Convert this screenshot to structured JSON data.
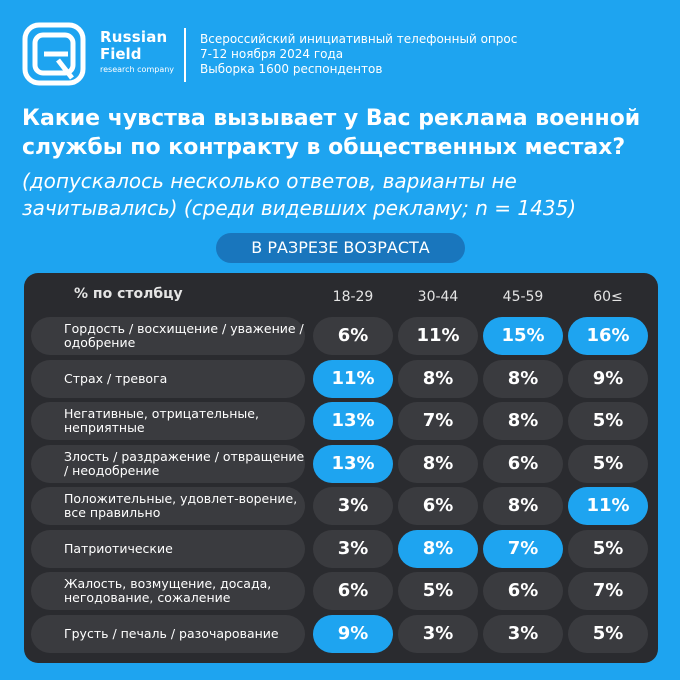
{
  "brand": {
    "line1": "Russian",
    "line2": "Field",
    "tagline": "research company",
    "logo_icon": "rf-logo-icon"
  },
  "survey": {
    "line1": "Всероссийский инициативный телефонный опрос",
    "line2": "7-12 ноября 2024 года",
    "line3": "Выборка 1600 респондентов"
  },
  "question": {
    "line1": "Какие чувства вызывает у Вас реклама военной",
    "line2": "службы по контракту в общественных местах?"
  },
  "note": {
    "line1": "(допускалось несколько ответов, варианты не",
    "line2": "зачитывались) (среди видевших рекламу; n = 1435)"
  },
  "section_label": "В РАЗРЕЗЕ ВОЗРАСТА",
  "colors": {
    "background": "#1ea4f0",
    "panel": "#2a2b2f",
    "cell": "#3a3b3f",
    "highlight": "#1ea4f0",
    "pill": "#1976bd"
  },
  "chart_data": {
    "type": "table",
    "corner_label": "% по столбцу",
    "columns": [
      "18-29",
      "30-44",
      "45-59",
      "60≤"
    ],
    "rows": [
      {
        "label": "Гордость / восхищение / уважение / одобрение",
        "values": [
          "6%",
          "11%",
          "15%",
          "16%"
        ],
        "highlight": [
          false,
          false,
          true,
          true
        ]
      },
      {
        "label": "Страх / тревога",
        "values": [
          "11%",
          "8%",
          "8%",
          "9%"
        ],
        "highlight": [
          true,
          false,
          false,
          false
        ]
      },
      {
        "label": "Негативные, отрицательные, неприятные",
        "values": [
          "13%",
          "7%",
          "8%",
          "5%"
        ],
        "highlight": [
          true,
          false,
          false,
          false
        ]
      },
      {
        "label": "Злость / раздражение / отвращение / неодобрение",
        "values": [
          "13%",
          "8%",
          "6%",
          "5%"
        ],
        "highlight": [
          true,
          false,
          false,
          false
        ]
      },
      {
        "label": "Положительные, удовлет-ворение, все правильно",
        "values": [
          "3%",
          "6%",
          "8%",
          "11%"
        ],
        "highlight": [
          false,
          false,
          false,
          true
        ]
      },
      {
        "label": "Патриотические",
        "values": [
          "3%",
          "8%",
          "7%",
          "5%"
        ],
        "highlight": [
          false,
          true,
          true,
          false
        ]
      },
      {
        "label": "Жалость, возмущение, досада, негодование, сожаление",
        "values": [
          "6%",
          "5%",
          "6%",
          "7%"
        ],
        "highlight": [
          false,
          false,
          false,
          false
        ]
      },
      {
        "label": "Грусть / печаль / разочарование",
        "values": [
          "9%",
          "3%",
          "3%",
          "5%"
        ],
        "highlight": [
          true,
          false,
          false,
          false
        ]
      }
    ]
  }
}
